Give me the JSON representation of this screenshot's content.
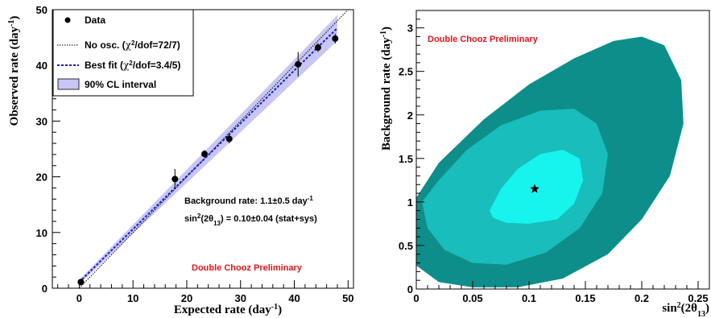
{
  "chart_data": [
    {
      "type": "scatter",
      "xlabel": "Expected rate (day",
      "xlabel_sup": "-1",
      "ylabel": "Observed rate (day",
      "ylabel_sup": "-1",
      "xlim": [
        -5,
        51
      ],
      "ylim": [
        0,
        50
      ],
      "xticks": [
        "0",
        "10",
        "20",
        "30",
        "40",
        "50"
      ],
      "yticks": [
        "0",
        "10",
        "20",
        "30",
        "40",
        "50"
      ],
      "series": [
        {
          "name": "Data",
          "points": [
            {
              "x": 0.3,
              "y": 1.1,
              "err": 0.4
            },
            {
              "x": 17.8,
              "y": 19.6,
              "err": 1.8
            },
            {
              "x": 23.3,
              "y": 24.1,
              "err": 0.7
            },
            {
              "x": 27.9,
              "y": 26.8,
              "err": 0.8
            },
            {
              "x": 40.7,
              "y": 40.2,
              "err": 2.2
            },
            {
              "x": 44.4,
              "y": 43.2,
              "err": 0.8
            },
            {
              "x": 47.6,
              "y": 44.8,
              "err": 0.9
            }
          ]
        },
        {
          "name": "No osc.",
          "line": {
            "intercept": 0,
            "slope": 1.0
          }
        },
        {
          "name": "Best fit",
          "line": {
            "intercept": 1.1,
            "slope": 0.95
          }
        },
        {
          "name": "90% CL interval"
        }
      ],
      "legend": {
        "position": "top-left",
        "items": [
          {
            "label": "Data"
          },
          {
            "label_pre": "No osc. (",
            "chi": "χ",
            "sup": "2",
            "label_post": "/dof=72/7)"
          },
          {
            "label_pre": "Best fit (",
            "chi": "χ",
            "sup": "2",
            "label_post": "/dof=3.4/5)"
          },
          {
            "label": "90% CL interval"
          }
        ]
      },
      "annotations": {
        "bg_pre": "Background rate: 1.1±0.5 day",
        "bg_sup": "-1",
        "sin_a": "sin",
        "sin_b": "2",
        "sin_c": "(2θ",
        "sin_d": "13",
        "sin_e": ") = 0.10±0.04 (stat+sys)"
      },
      "watermark": "Double Chooz Preliminary",
      "colors": {
        "fit": "#1b1bd1",
        "band": "#c7c6f4",
        "data": "#000000"
      }
    },
    {
      "type": "contour",
      "xlabel_a": "sin",
      "xlabel_b": "2",
      "xlabel_c": "(2θ",
      "xlabel_d": "13",
      "xlabel_e": ")",
      "ylabel": "Background rate (day",
      "ylabel_sup": "-1",
      "xlim": [
        0,
        0.26
      ],
      "ylim": [
        0,
        3.2
      ],
      "xticks": [
        "0",
        "0.05",
        "0.1",
        "0.15",
        "0.2",
        "0.25"
      ],
      "yticks": [
        "0",
        "0.5",
        "1",
        "1.5",
        "2",
        "2.5",
        "3"
      ],
      "best_fit": {
        "x": 0.105,
        "y": 1.15
      },
      "contours": [
        {
          "level": "outer",
          "color": "#0e8e8a"
        },
        {
          "level": "middle",
          "color": "#19bdbb"
        },
        {
          "level": "inner",
          "color": "#17f3ed"
        }
      ],
      "watermark": "Double Chooz Preliminary"
    }
  ]
}
